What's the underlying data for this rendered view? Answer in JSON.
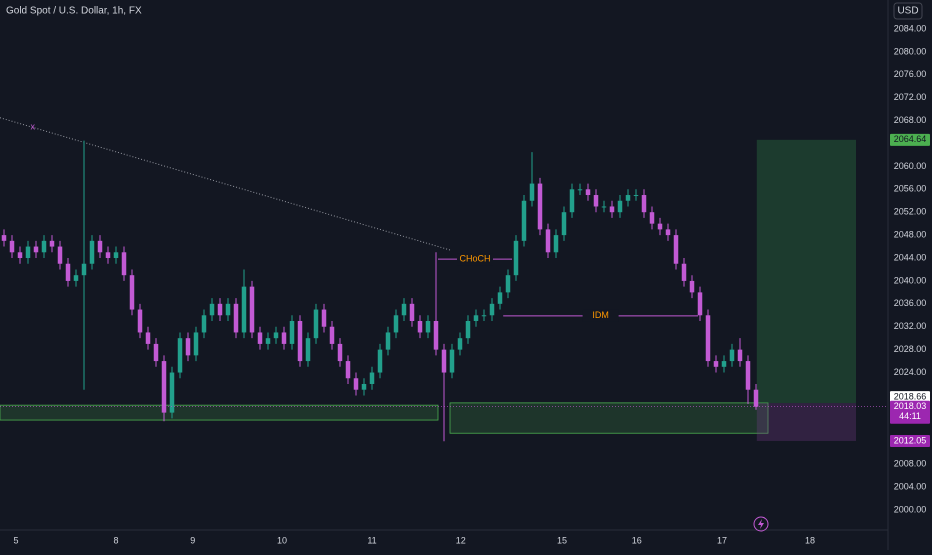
{
  "chart_data": {
    "type": "candlestick",
    "title": "Gold Spot / U.S. Dollar, 1h, FX",
    "currency": "USD",
    "up_color": "#22a08c",
    "down_color": "#c25ad4",
    "xlim": [
      -0.5,
      110.5
    ],
    "ylim": [
      1996.5,
      2089.06
    ],
    "xticks": [
      {
        "value": 1.5,
        "label": "5"
      },
      {
        "value": 14,
        "label": "8"
      },
      {
        "value": 23.6,
        "label": "9"
      },
      {
        "value": 34.75,
        "label": "10"
      },
      {
        "value": 46,
        "label": "11"
      },
      {
        "value": 57.1,
        "label": "12"
      },
      {
        "value": 69.75,
        "label": "15"
      },
      {
        "value": 79.1,
        "label": "16"
      },
      {
        "value": 89.75,
        "label": "17"
      },
      {
        "value": 100.75,
        "label": "18"
      }
    ],
    "yticks": [
      {
        "value": 2084,
        "label": "2084.00"
      },
      {
        "value": 2080,
        "label": "2080.00"
      },
      {
        "value": 2076,
        "label": "2076.00"
      },
      {
        "value": 2072,
        "label": "2072.00"
      },
      {
        "value": 2068,
        "label": "2068.00"
      },
      {
        "value": 2060,
        "label": "2060.00"
      },
      {
        "value": 2056,
        "label": "2056.00"
      },
      {
        "value": 2052,
        "label": "2052.00"
      },
      {
        "value": 2048,
        "label": "2048.00"
      },
      {
        "value": 2044,
        "label": "2044.00"
      },
      {
        "value": 2040,
        "label": "2040.00"
      },
      {
        "value": 2036,
        "label": "2036.00"
      },
      {
        "value": 2032,
        "label": "2032.00"
      },
      {
        "value": 2028,
        "label": "2028.00"
      },
      {
        "value": 2024,
        "label": "2024.00"
      },
      {
        "value": 2008,
        "label": "2008.00"
      },
      {
        "value": 2004,
        "label": "2004.00"
      },
      {
        "value": 2000,
        "label": "2000.00"
      }
    ],
    "candles": {
      "open": [
        2048,
        2047,
        2045,
        2044,
        2046,
        2045,
        2047,
        2046,
        2043,
        2040,
        2041,
        2043,
        2047,
        2045,
        2044,
        2045,
        2041,
        2035,
        2031,
        2029,
        2026,
        2017,
        2024,
        2030,
        2027,
        2031,
        2034,
        2036,
        2034,
        2036,
        2031,
        2039,
        2031,
        2029,
        2030,
        2031,
        2029,
        2033,
        2026,
        2030,
        2035,
        2032,
        2029,
        2026,
        2023,
        2021,
        2022,
        2024,
        2028,
        2031,
        2034,
        2036,
        2033,
        2031,
        2033,
        2028,
        2024,
        2028,
        2030,
        2033,
        2034,
        2034,
        2036,
        2038,
        2041,
        2047,
        2054,
        2057,
        2049,
        2045,
        2048,
        2052,
        2056,
        2056,
        2055,
        2053,
        2053,
        2052,
        2054,
        2055,
        2055,
        2052,
        2050,
        2049,
        2048,
        2043,
        2040,
        2038,
        2034,
        2026,
        2025,
        2026,
        2028,
        2026,
        2021
      ],
      "high": [
        2049,
        2048,
        2046,
        2047,
        2047,
        2048,
        2048,
        2047,
        2044,
        2042,
        2064.5,
        2048,
        2048,
        2046,
        2046,
        2046,
        2042,
        2036,
        2032,
        2030,
        2027,
        2025,
        2031,
        2031,
        2032,
        2035,
        2037,
        2037,
        2037,
        2037,
        2042,
        2040,
        2032,
        2031,
        2032,
        2032,
        2034,
        2034,
        2031,
        2036,
        2036,
        2033,
        2030,
        2027,
        2024,
        2023,
        2025,
        2029,
        2032,
        2035,
        2037,
        2037,
        2034,
        2034,
        2045,
        2029,
        2029,
        2031,
        2034,
        2035,
        2035,
        2037,
        2039,
        2042,
        2048,
        2055,
        2062.5,
        2058,
        2050,
        2049,
        2053,
        2057,
        2057,
        2057,
        2056,
        2054,
        2054,
        2055,
        2056,
        2056,
        2056,
        2053,
        2051,
        2050,
        2049,
        2044,
        2041,
        2039,
        2035,
        2027,
        2027,
        2029,
        2030,
        2027,
        2022
      ],
      "low": [
        2046,
        2044,
        2043,
        2043,
        2044,
        2044,
        2045,
        2042,
        2039,
        2039,
        2021,
        2042,
        2044,
        2043,
        2043,
        2040,
        2034,
        2030,
        2028,
        2025,
        2015.5,
        2016,
        2023,
        2026,
        2026,
        2030,
        2033,
        2033,
        2033,
        2030,
        2030,
        2030,
        2028,
        2028,
        2029,
        2028,
        2028,
        2025,
        2025,
        2029,
        2031,
        2028,
        2025,
        2022,
        2020,
        2020,
        2021,
        2023,
        2027,
        2030,
        2033,
        2032,
        2030,
        2030,
        2027,
        2012,
        2023,
        2027,
        2029,
        2032,
        2033,
        2033,
        2035,
        2037,
        2040,
        2046,
        2053,
        2048,
        2044,
        2044,
        2047,
        2051,
        2055,
        2054,
        2052,
        2052,
        2051,
        2051,
        2053,
        2054,
        2051,
        2049,
        2048,
        2047,
        2042,
        2039,
        2037,
        2033,
        2025,
        2024,
        2024,
        2025,
        2025,
        2018.5,
        2017.5
      ],
      "close": [
        2047,
        2045,
        2044,
        2046,
        2045,
        2047,
        2046,
        2043,
        2040,
        2041,
        2043,
        2047,
        2045,
        2044,
        2045,
        2041,
        2035,
        2031,
        2029,
        2026,
        2017,
        2024,
        2030,
        2027,
        2031,
        2034,
        2036,
        2034,
        2036,
        2031,
        2039,
        2031,
        2029,
        2030,
        2031,
        2029,
        2033,
        2026,
        2030,
        2035,
        2032,
        2029,
        2026,
        2023,
        2021,
        2022,
        2024,
        2028,
        2031,
        2034,
        2036,
        2033,
        2031,
        2033,
        2028,
        2024,
        2028,
        2030,
        2033,
        2034,
        2034,
        2036,
        2038,
        2041,
        2047,
        2054,
        2057,
        2049,
        2045,
        2048,
        2052,
        2056,
        2056,
        2055,
        2053,
        2053,
        2052,
        2054,
        2055,
        2055,
        2052,
        2050,
        2049,
        2048,
        2043,
        2040,
        2038,
        2034,
        2026,
        2025,
        2026,
        2028,
        2026,
        2021,
        2018.03
      ]
    },
    "zones": [
      {
        "x": [
          -0.5,
          54.25
        ],
        "y": [
          2015.7,
          2018.3
        ]
      },
      {
        "x": [
          55.75,
          95.5
        ],
        "y": [
          2013.4,
          2018.7
        ]
      }
    ],
    "position": {
      "x": [
        94.1,
        106.5
      ],
      "entry": 2018.66,
      "target": 2064.64,
      "stop": 2012.05
    },
    "last_price": 2018.03,
    "countdown": "44:11",
    "trendline": {
      "x": [
        -0.5,
        55.75
      ],
      "y": [
        2068.5,
        2045.4
      ]
    },
    "marker": {
      "label": "x",
      "x": 3.6,
      "y": 2066.9
    },
    "levels": [
      {
        "label": "CHoCH",
        "x": [
          54.25,
          63.5
        ],
        "y": 2043.8
      },
      {
        "label": "IDM",
        "x": [
          62.4,
          86.75
        ],
        "y": 2033.9
      }
    ]
  }
}
